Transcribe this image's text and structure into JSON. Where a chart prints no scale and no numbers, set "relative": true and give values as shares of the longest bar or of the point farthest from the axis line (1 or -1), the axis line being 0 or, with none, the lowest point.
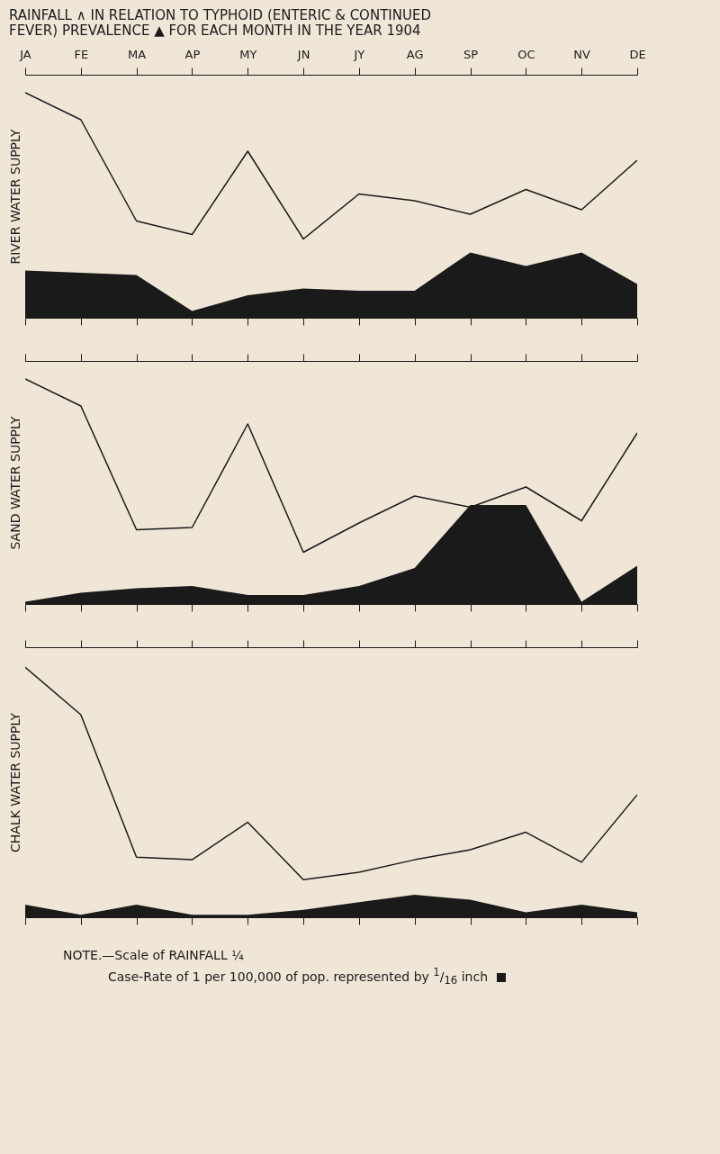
{
  "chart_data": [
    {
      "type": "line",
      "title": "RAINFALL ∧ IN RELATION TO TYPHOID (ENTERIC & CONTINUED FEVER) PREVALENCE ▲ FOR EACH MONTH IN THE YEAR 1904",
      "ylabel": "RIVER WATER SUPPLY",
      "relative": true,
      "tick_labels": "x",
      "categories": [
        "JA",
        "FE",
        "MA",
        "AP",
        "MY",
        "JN",
        "JY",
        "AG",
        "SP",
        "OC",
        "NV",
        "DE"
      ],
      "series": [
        {
          "type": "line",
          "color": "#1a1a1a",
          "values": [
            1,
            0.88,
            0.43,
            0.37,
            0.74,
            0.35,
            0.55,
            0.52,
            0.46,
            0.57,
            0.48,
            0.7
          ]
        },
        {
          "type": "area",
          "color": "#1a1a1a",
          "values": [
            0.21,
            0.2,
            0.19,
            0.03,
            0.1,
            0.13,
            0.12,
            0.12,
            0.29,
            0.23,
            0.29,
            0.15
          ]
        }
      ]
    },
    {
      "type": "line",
      "ylabel": "SAND WATER SUPPLY",
      "relative": true,
      "tick_labels": false,
      "categories": [
        null,
        null,
        null,
        null,
        null,
        null,
        null,
        null,
        null,
        null,
        null,
        null
      ],
      "series": [
        {
          "type": "line",
          "color": "#1a1a1a",
          "values": [
            1,
            0.88,
            0.33,
            0.34,
            0.8,
            0.23,
            0.36,
            0.48,
            0.43,
            0.52,
            0.37,
            0.76
          ]
        },
        {
          "type": "area",
          "color": "#1a1a1a",
          "values": [
            0.01,
            0.05,
            0.07,
            0.08,
            0.04,
            0.04,
            0.08,
            0.16,
            0.44,
            0.44,
            0.01,
            0.17
          ]
        }
      ]
    },
    {
      "type": "line",
      "ylabel": "CHALK WATER SUPPLY",
      "relative": true,
      "tick_labels": false,
      "categories": [
        null,
        null,
        null,
        null,
        null,
        null,
        null,
        null,
        null,
        null,
        null,
        null
      ],
      "series": [
        {
          "type": "line",
          "color": "#1a1a1a",
          "values": [
            1,
            0.81,
            0.24,
            0.23,
            0.38,
            0.15,
            0.18,
            0.23,
            0.27,
            0.34,
            0.22,
            0.49
          ]
        },
        {
          "type": "area",
          "color": "#1a1a1a",
          "values": [
            0.05,
            0.01,
            0.05,
            0.01,
            0.01,
            0.03,
            0.06,
            0.09,
            0.07,
            0.02,
            0.05,
            0.02
          ]
        }
      ],
      "annotations": [
        "NOTE.—Scale of RAINFALL ¼",
        "Case-Rate of 1 per 100,000 of pop. represented by $^{1}$/$_{16}$ inch"
      ]
    }
  ]
}
